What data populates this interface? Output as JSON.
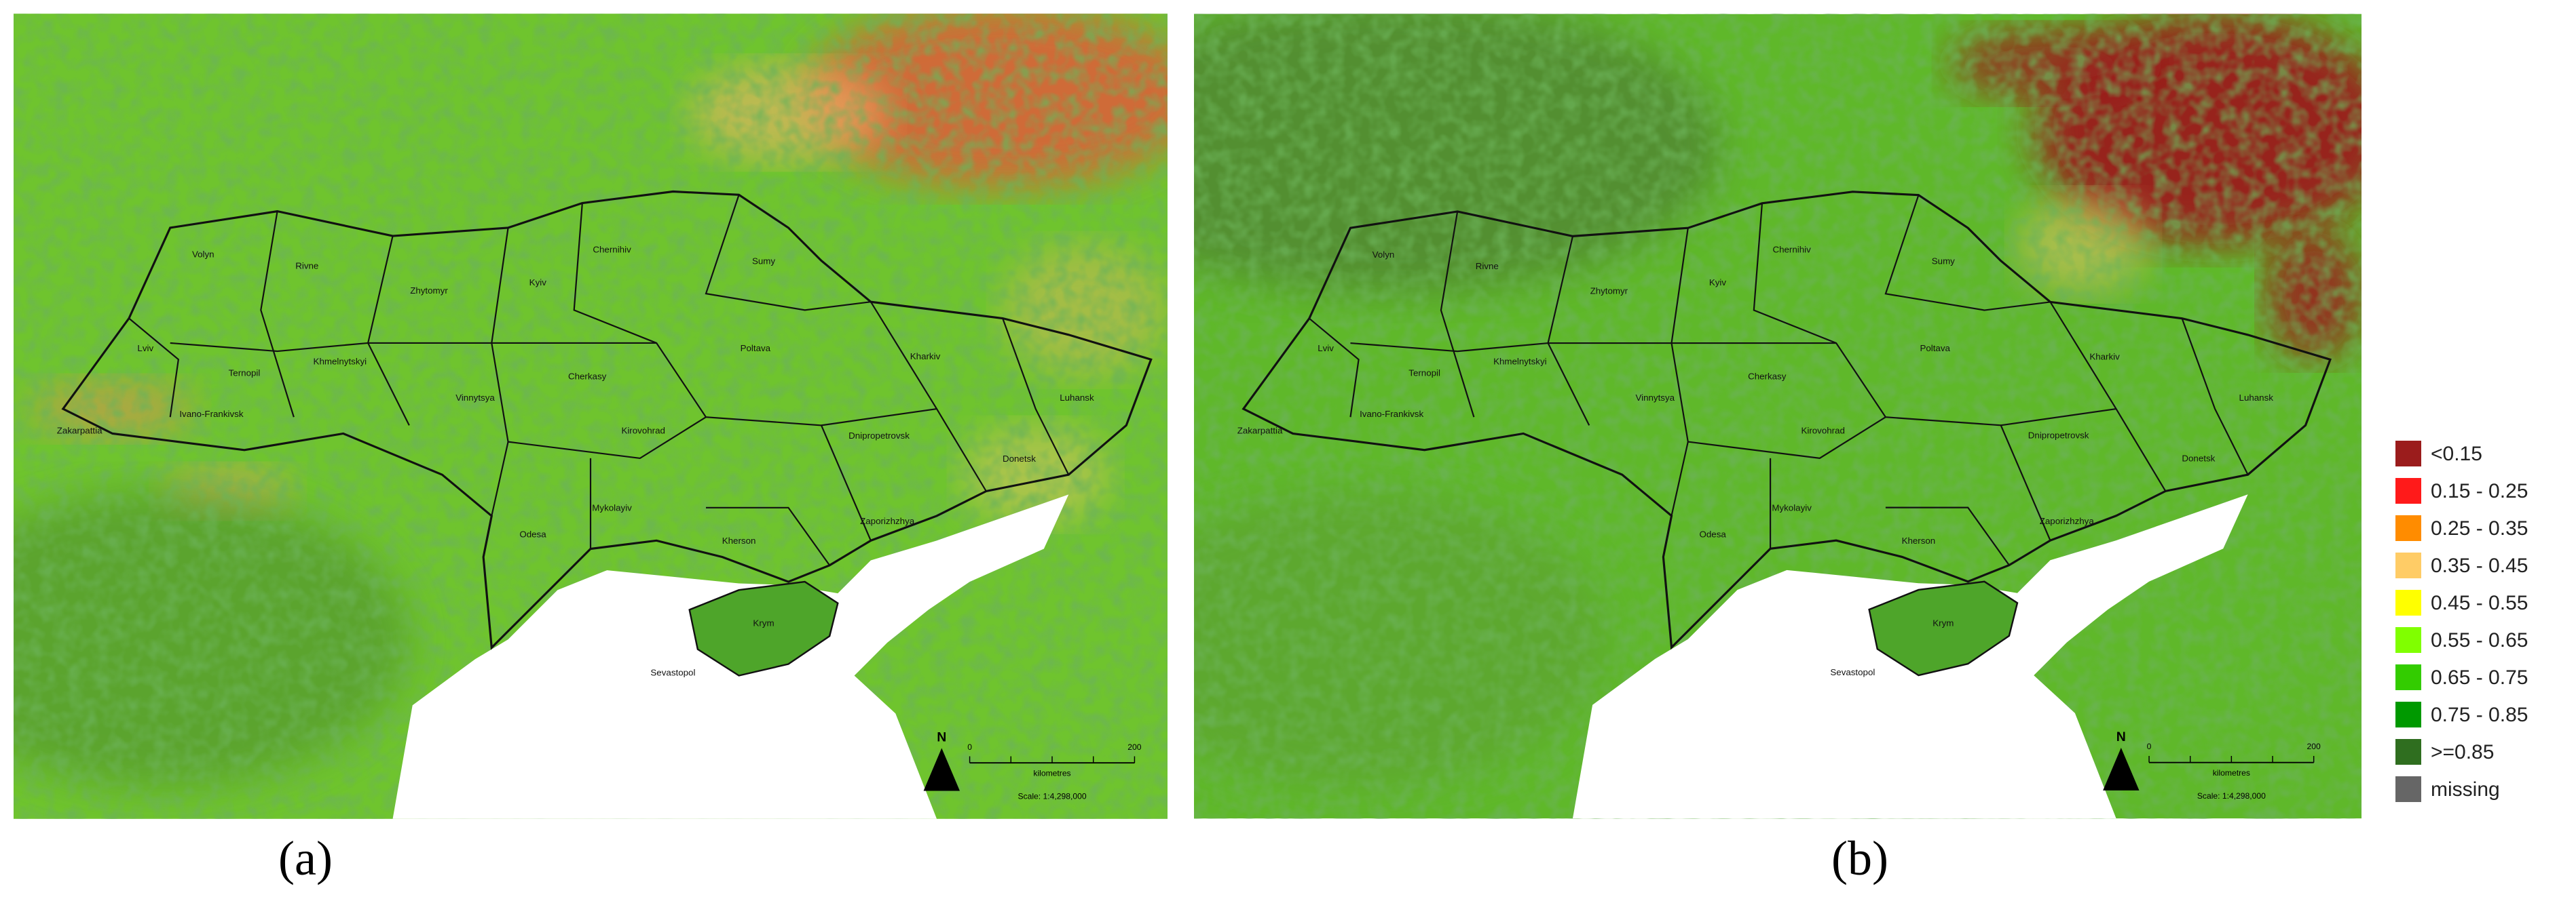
{
  "panels": [
    {
      "caption": "(a)"
    },
    {
      "caption": "(b)"
    }
  ],
  "regions": [
    "Volyn",
    "Rivne",
    "Zhytomyr",
    "Kyiv",
    "Chernihiv",
    "Sumy",
    "Lviv",
    "Ternopil",
    "Khmelnytskyi",
    "Vinnytsya",
    "Cherkasy",
    "Poltava",
    "Kharkiv",
    "Luhansk",
    "Ivano-Frankivsk",
    "Zakarpattia",
    "Kirovohrad",
    "Dnipropetrovsk",
    "Donetsk",
    "Mykolayiv",
    "Odesa",
    "Kherson",
    "Zaporizhzhya",
    "Krym",
    "Sevastopol"
  ],
  "scale_bar": {
    "start": "0",
    "end": "200",
    "unit": "kilometres",
    "scale": "Scale: 1:4,298,000",
    "north": "N"
  },
  "legend": [
    {
      "label": "<0.15",
      "color": "#9b1c1c"
    },
    {
      "label": "0.15 - 0.25",
      "color": "#ff1a1a"
    },
    {
      "label": "0.25 - 0.35",
      "color": "#ff8c00"
    },
    {
      "label": "0.35 - 0.45",
      "color": "#ffcc66"
    },
    {
      "label": "0.45 - 0.55",
      "color": "#ffff00"
    },
    {
      "label": "0.55 - 0.65",
      "color": "#80ff00"
    },
    {
      "label": "0.65 - 0.75",
      "color": "#33cc00"
    },
    {
      "label": "0.75 - 0.85",
      "color": "#009900"
    },
    {
      "label": ">=0.85",
      "color": "#2f6e1f"
    },
    {
      "label": "missing",
      "color": "#666666"
    }
  ]
}
